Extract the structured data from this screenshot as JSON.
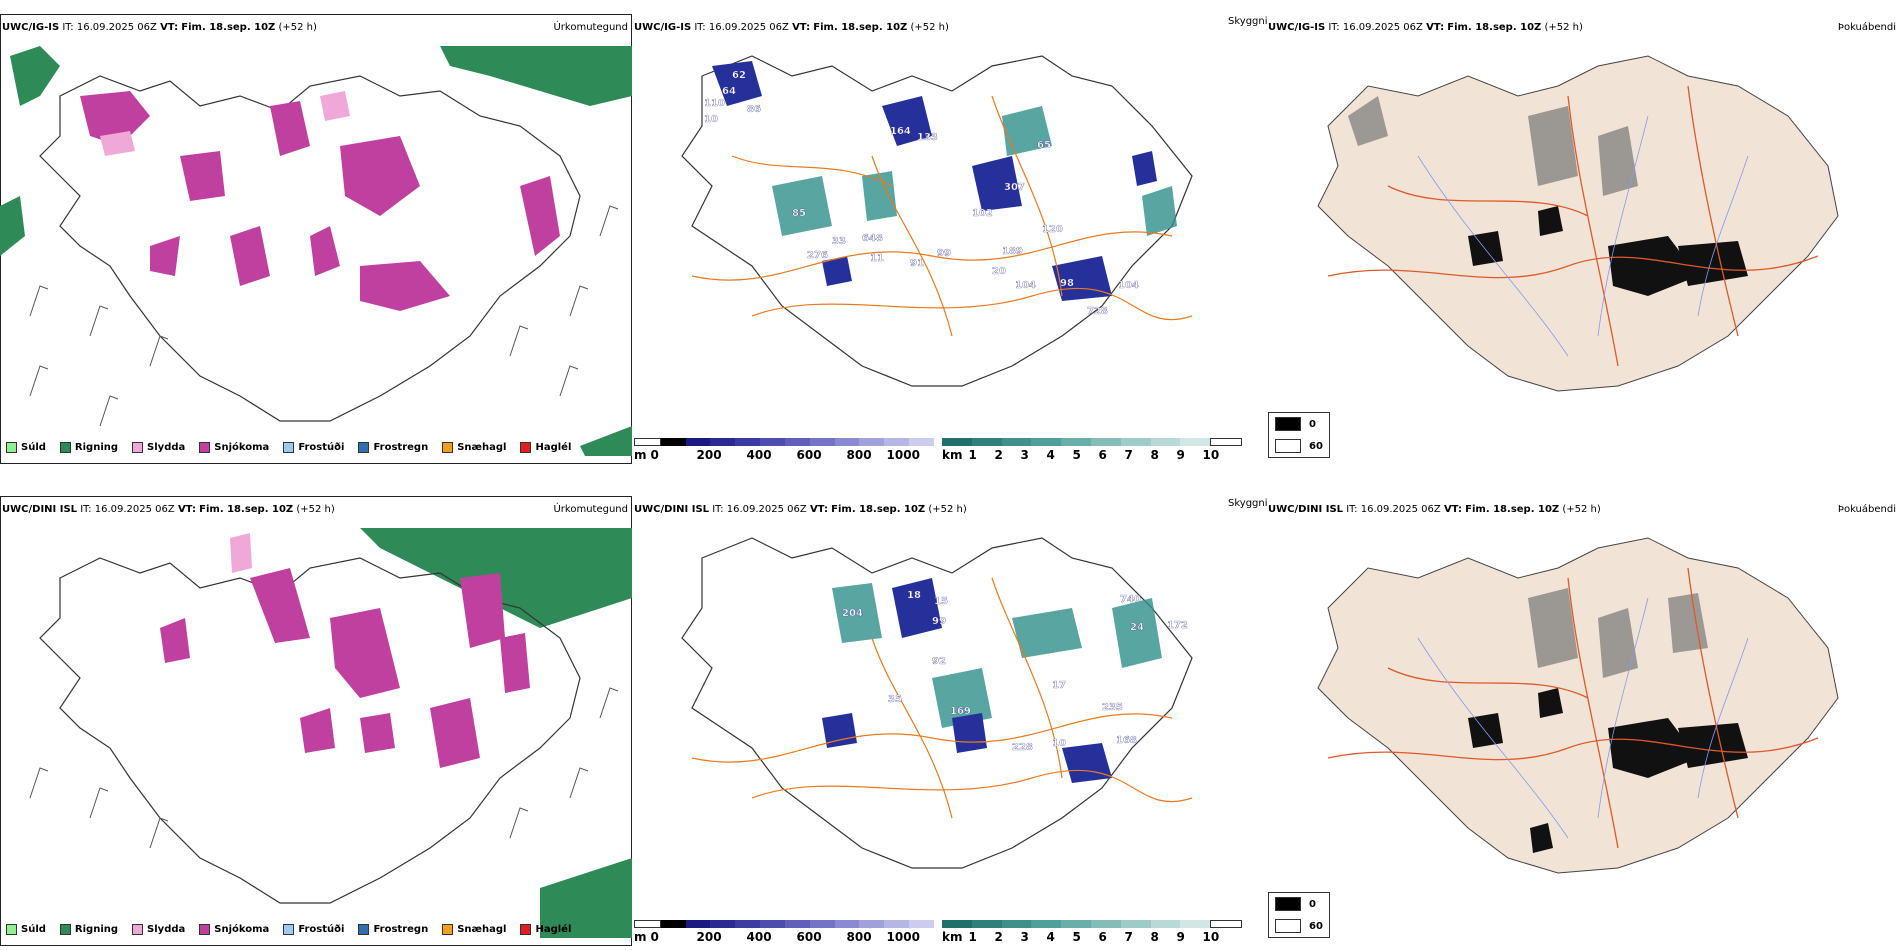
{
  "rows": [
    {
      "model": "UWC/IG-IS",
      "it": "IT: 16.09.2025 06Z",
      "vt_label": "VT:",
      "vt": "Fim. 18.sep. 10Z",
      "lead": "(+52 h)",
      "precip_type_label": "Úrkomutegund",
      "clouds_label": "Skyggni",
      "fog_label": "Þokuábendi",
      "visibility_numbers": [
        "62",
        "64",
        "110",
        "86",
        "10",
        "164",
        "133",
        "85",
        "65",
        "307",
        "102",
        "189",
        "120",
        "276",
        "33",
        "648",
        "11",
        "91",
        "99",
        "20",
        "104",
        "98",
        "728",
        "104"
      ]
    },
    {
      "model": "UWC/DINI ISL",
      "it": "IT: 16.09.2025 06Z",
      "vt_label": "VT:",
      "vt": "Fim. 18.sep. 10Z",
      "lead": "(+52 h)",
      "precip_type_label": "Úrkomutegund",
      "clouds_label": "Skyggni",
      "fog_label": "Þokuábendi",
      "visibility_numbers": [
        "204",
        "18",
        "15",
        "99",
        "740",
        "24",
        "172",
        "17",
        "92",
        "169",
        "35",
        "228",
        "10",
        "235",
        "168"
      ]
    }
  ],
  "precip_legend": [
    {
      "label": "Súld",
      "color": "#90ee90"
    },
    {
      "label": "Rigning",
      "color": "#2e8b57"
    },
    {
      "label": "Slydda",
      "color": "#f0a8d8"
    },
    {
      "label": "Snjókoma",
      "color": "#c040a0"
    },
    {
      "label": "Frostúði",
      "color": "#9ec9f0"
    },
    {
      "label": "Frostregn",
      "color": "#2f6fb0"
    },
    {
      "label": "Snæhagl",
      "color": "#f0a020"
    },
    {
      "label": "Haglél",
      "color": "#e02020"
    }
  ],
  "m_bar": {
    "unit": "m",
    "ticks": [
      "0",
      "200",
      "400",
      "600",
      "800",
      "1000"
    ]
  },
  "km_bar": {
    "unit": "km",
    "ticks": [
      "1",
      "2",
      "3",
      "4",
      "5",
      "6",
      "7",
      "8",
      "9",
      "10"
    ]
  },
  "cover_legend": [
    {
      "label": "0",
      "color": "#000000"
    },
    {
      "label": "60",
      "color": "#ffffff"
    }
  ],
  "colors": {
    "rain": "#2e8b57",
    "snow": "#c040a0",
    "sleet": "#f0a8d8",
    "road": "#e87a20",
    "land": "#f1e3d5",
    "river": "#8899ee",
    "vis_dark": "#26309a",
    "vis_teal": "#2f8f8a"
  }
}
